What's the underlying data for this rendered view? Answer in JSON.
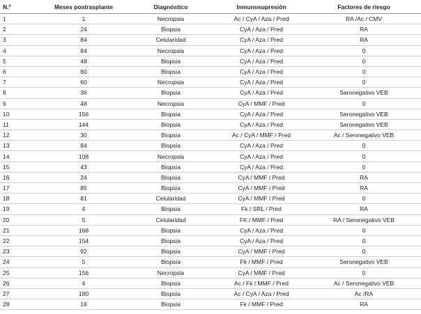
{
  "table": {
    "header": [
      "N.º",
      "Meses postrasplante",
      "Diagnóstico",
      "Inmunosupresión",
      "Factores de riesgo"
    ],
    "rows": [
      [
        "1",
        "1",
        "Necropsia",
        "Ac / CyA / Aza / Pred",
        "RA /Ac / CMV"
      ],
      [
        "2",
        "24",
        "Biopsia",
        "CyA / Aza / Pred",
        "RA"
      ],
      [
        "3",
        "84",
        "Celularidad",
        "CyA / Aza / Pred",
        "RA"
      ],
      [
        "4",
        "84",
        "Necropsia",
        "CyA / Aza / Pred",
        "0"
      ],
      [
        "5",
        "48",
        "Biopsia",
        "CyA / Aza / Pred",
        "0"
      ],
      [
        "6",
        "60",
        "Biopsia",
        "CyA / Aza / Pred",
        "0"
      ],
      [
        "7",
        "60",
        "Necropsia",
        "CyA / Aza / Pred",
        "0"
      ],
      [
        "8",
        "36",
        "Biopsia",
        "CyA / Aza / Pred",
        "Seronegativo VEB"
      ],
      [
        "9",
        "48",
        "Necropsia",
        "CyA / MMF / Pred",
        "0"
      ],
      [
        "10",
        "156",
        "Biopsia",
        "CyA / Aza / Pred",
        "Seronegativo VEB"
      ],
      [
        "11",
        "144",
        "Biopsia",
        "CyA / Aza / Pred",
        "Seronegativo VEB"
      ],
      [
        "12",
        "30",
        "Biopsia",
        "Ac / CyA / MMF / Pred",
        "Ac / Seronegativo VEB"
      ],
      [
        "13",
        "84",
        "Biopsia",
        "CyA / Aza / Pred",
        "0"
      ],
      [
        "14",
        "108",
        "Necropsia",
        "CyA / Aza / Pred",
        "0"
      ],
      [
        "15",
        "43",
        "Biopsia",
        "CyA / Aza / Pred",
        "0"
      ],
      [
        "16",
        "24",
        "Biopsia",
        "CyA / MMF / Pred",
        "RA"
      ],
      [
        "17",
        "85",
        "Biopsia",
        "CyA / MMF / Pred",
        "RA"
      ],
      [
        "18",
        "81",
        "Celularidad",
        "CyA / MMF / Pred",
        "0"
      ],
      [
        "19",
        "4",
        "Biopsia",
        "Fk / SRL / Pred",
        "RA"
      ],
      [
        "20",
        "5",
        "Celularidad",
        "FK / MMF / Pred",
        "RA / Seronegativo VEB"
      ],
      [
        "21",
        "168",
        "Biopsia",
        "CyA / Aza / Pred",
        "0"
      ],
      [
        "22",
        "154",
        "Biopsia",
        "CyA / Aza / Pred",
        "0"
      ],
      [
        "23",
        "92",
        "Biopsia",
        "CyA / MMF / Pred",
        "0"
      ],
      [
        "24",
        "5",
        "Biopsia",
        "Fk / MMF / Pred",
        "Seronegativo VEB"
      ],
      [
        "25",
        "156",
        "Necropsia",
        "CyA / MMF / Pred",
        "0"
      ],
      [
        "26",
        "4",
        "Biopsia",
        "Ac / Fk / MMF / Pred",
        "Ac / Seronegativo VEB"
      ],
      [
        "27",
        "180",
        "Biopsia",
        "Ac / CyA / Aza / Pred",
        "Ac /RA"
      ],
      [
        "28",
        "18",
        "Biopsia",
        "Fk / MMF / Pred",
        "RA"
      ]
    ]
  }
}
